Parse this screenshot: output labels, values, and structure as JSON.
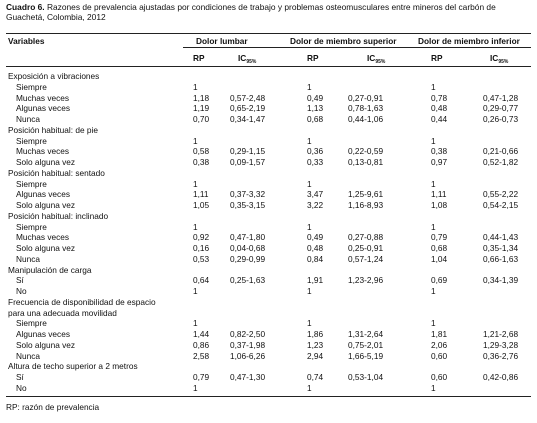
{
  "header": {
    "label": "Cuadro 6.",
    "title": "Razones de prevalencia ajustadas por condiciones de trabajo y problemas osteomusculares entre mineros del carbón de Guachetá, Colombia, 2012"
  },
  "table": {
    "column_header": "Variables",
    "groups": [
      "Dolor lumbar",
      "Dolor de miembro superior",
      "Dolor de miembro inferior"
    ],
    "subheaders": [
      {
        "main": "RP"
      },
      {
        "main": "IC",
        "sub": "95%"
      },
      {
        "main": "RP"
      },
      {
        "main": "IC",
        "sub": "95%"
      },
      {
        "main": "RP"
      },
      {
        "main": "IC",
        "sub": "95%"
      }
    ],
    "sections": [
      {
        "title": "Exposición a vibraciones",
        "rows": [
          [
            "Siempre",
            "1",
            null,
            "1",
            null,
            "1",
            null
          ],
          [
            "Muchas veces",
            "1,18",
            "0,57-2,48",
            "0,49",
            "0,27-0,91",
            "0,78",
            "0,47-1,28"
          ],
          [
            "Algunas veces",
            "1,19",
            "0,65-2,19",
            "1,13",
            "0,78-1,63",
            "0,48",
            "0,29-0,77"
          ],
          [
            "Nunca",
            "0,70",
            "0,34-1,47",
            "0,68",
            "0,44-1,06",
            "0,44",
            "0,26-0,73"
          ]
        ]
      },
      {
        "title": "Posición habitual: de pie",
        "rows": [
          [
            "Siempre",
            "1",
            null,
            "1",
            null,
            "1",
            null
          ],
          [
            "Muchas veces",
            "0,58",
            "0,29-1,15",
            "0,36",
            "0,22-0,59",
            "0,38",
            "0,21-0,66"
          ],
          [
            "Solo alguna vez",
            "0,38",
            "0,09-1,57",
            "0,33",
            "0,13-0,81",
            "0,97",
            "0,52-1,82"
          ]
        ]
      },
      {
        "title": "Posición habitual: sentado",
        "rows": [
          [
            "Siempre",
            "1",
            null,
            "1",
            null,
            "1",
            null
          ],
          [
            "Algunas veces",
            "1,11",
            "0,37-3,32",
            "3,47",
            "1,25-9,61",
            "1,11",
            "0,55-2,22"
          ],
          [
            "Solo alguna vez",
            "1,05",
            "0,35-3,15",
            "3,22",
            "1,16-8,93",
            "1,08",
            "0,54-2,15"
          ]
        ]
      },
      {
        "title": "Posición habitual: inclinado",
        "rows": [
          [
            "Siempre",
            "1",
            null,
            "1",
            null,
            "1",
            null
          ],
          [
            "Muchas veces",
            "0,92",
            "0,47-1,80",
            "0,49",
            "0,27-0,88",
            "0,79",
            "0,44-1,43"
          ],
          [
            "Solo alguna vez",
            "0,16",
            "0,04-0,68",
            "0,48",
            "0,25-0,91",
            "0,68",
            "0,35-1,34"
          ],
          [
            "Nunca",
            "0,53",
            "0,29-0,99",
            "0,84",
            "0,57-1,24",
            "1,04",
            "0,66-1,63"
          ]
        ]
      },
      {
        "title": "Manipulación de carga",
        "rows": [
          [
            "Sí",
            "0,64",
            "0,25-1,63",
            "1,91",
            "1,23-2,96",
            "0,69",
            "0,34-1,39"
          ],
          [
            "No",
            "1",
            null,
            "1",
            null,
            "1",
            null
          ]
        ]
      },
      {
        "title": [
          "Frecuencia de disponibilidad de espacio",
          "para una adecuada movilidad"
        ],
        "rows": [
          [
            "Siempre",
            "1",
            null,
            "1",
            null,
            "1",
            null
          ],
          [
            "Algunas veces",
            "1,44",
            "0,82-2,50",
            "1,86",
            "1,31-2,64",
            "1,81",
            "1,21-2,68"
          ],
          [
            "Solo alguna vez",
            "0,86",
            "0,37-1,98",
            "1,23",
            "0,75-2,01",
            "2,06",
            "1,29-3,28"
          ],
          [
            "Nunca",
            "2,58",
            "1,06-6,26",
            "2,94",
            "1,66-5,19",
            "0,60",
            "0,36-2,76"
          ]
        ]
      },
      {
        "title": "Altura de techo superior a 2 metros",
        "rows": [
          [
            "Sí",
            "0,79",
            "0,47-1,30",
            "0,74",
            "0,53-1,04",
            "0,60",
            "0,42-0,86"
          ],
          [
            "No",
            "1",
            null,
            "1",
            null,
            "1",
            null
          ]
        ]
      }
    ]
  },
  "footnote": "RP: razón de prevalencia"
}
